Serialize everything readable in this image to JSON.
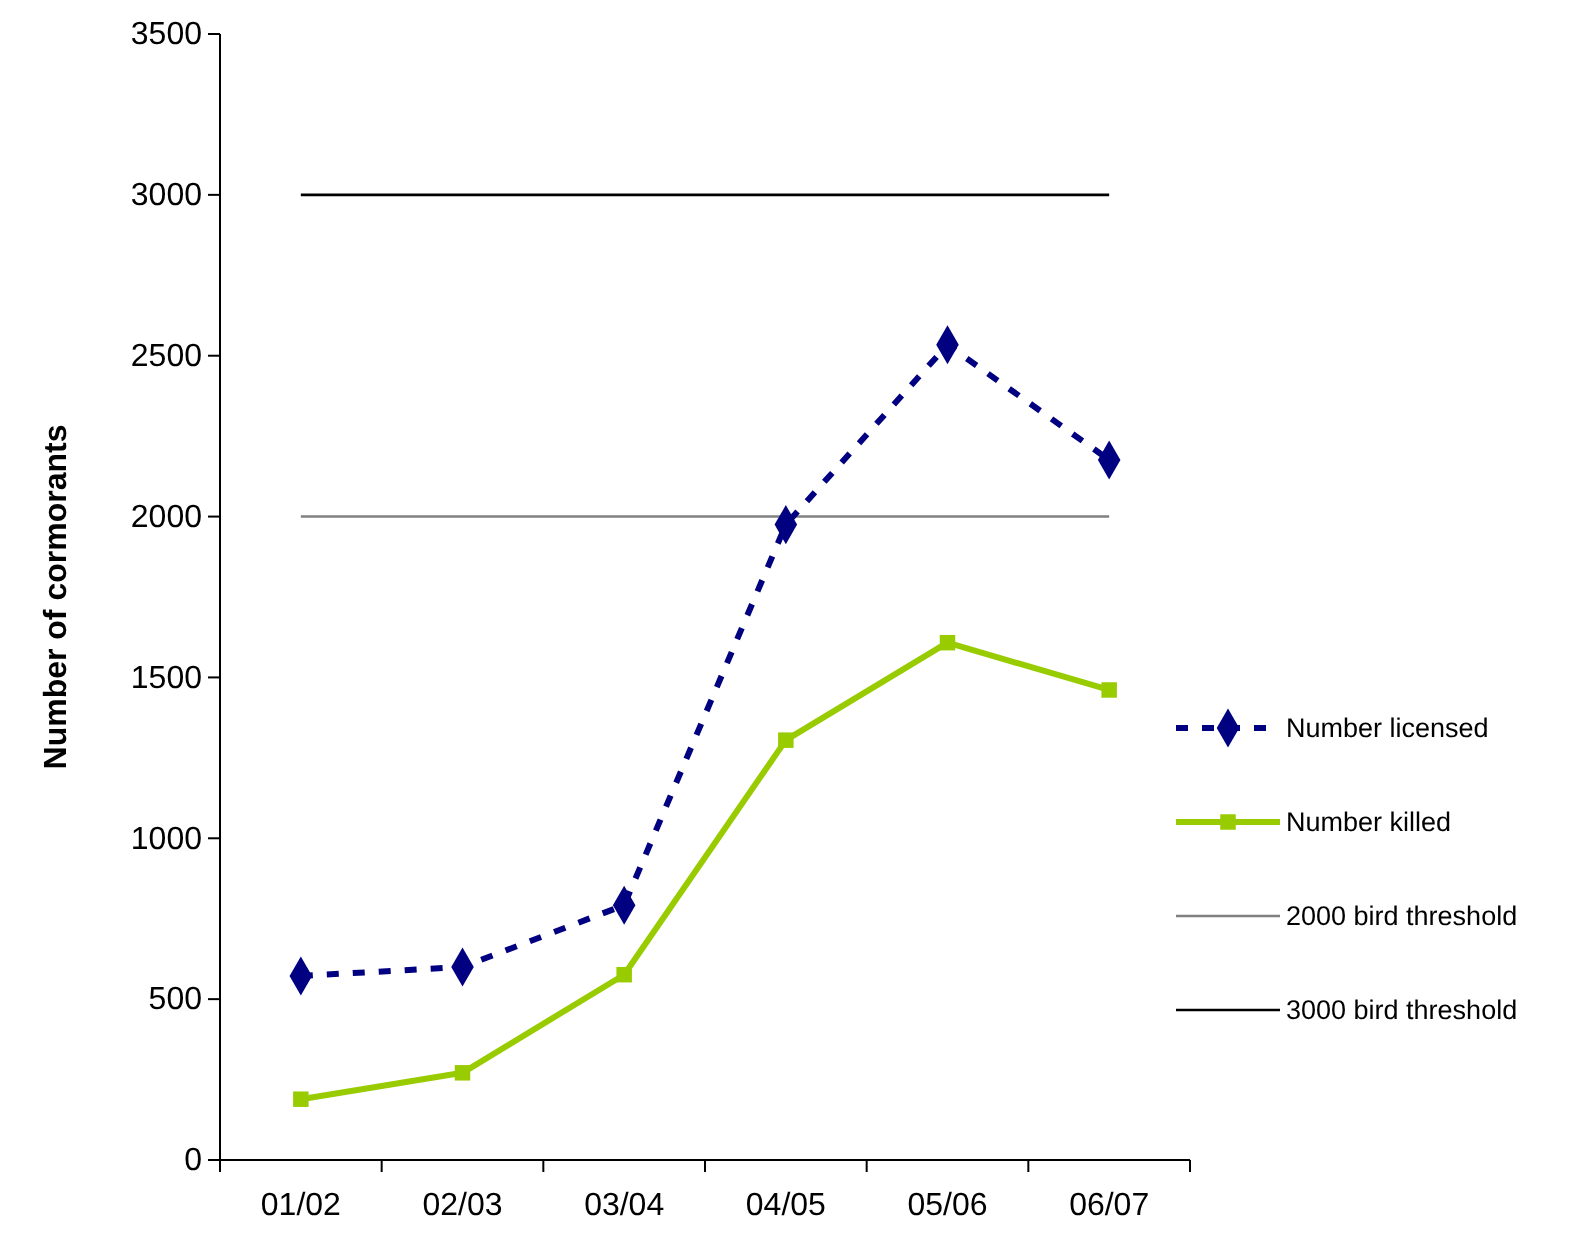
{
  "chart_data": {
    "type": "line",
    "ylabel": "Number of cormorants",
    "categories": [
      "01/02",
      "02/03",
      "03/04",
      "04/05",
      "05/06",
      "06/07"
    ],
    "ylim": [
      0,
      3500
    ],
    "yticks": [
      0,
      500,
      1000,
      1500,
      2000,
      2500,
      3000,
      3500
    ],
    "legend": "right",
    "grid": false,
    "series": [
      {
        "name": "Number licensed",
        "color": "#000080",
        "values": [
          572,
          600,
          792,
          1975,
          2534,
          2176
        ],
        "marker": "diamond",
        "line_style": "dashed"
      },
      {
        "name": "Number killed",
        "color": "#99cc00",
        "values": [
          189,
          271,
          576,
          1305,
          1608,
          1461
        ],
        "marker": "square",
        "line_style": "solid"
      }
    ],
    "ref_lines": [
      {
        "axis": "y",
        "value": 2000,
        "label": "2000 bird threshold",
        "color": "#808080"
      },
      {
        "axis": "y",
        "value": 3000,
        "label": "3000 bird threshold",
        "color": "#000000"
      }
    ]
  }
}
